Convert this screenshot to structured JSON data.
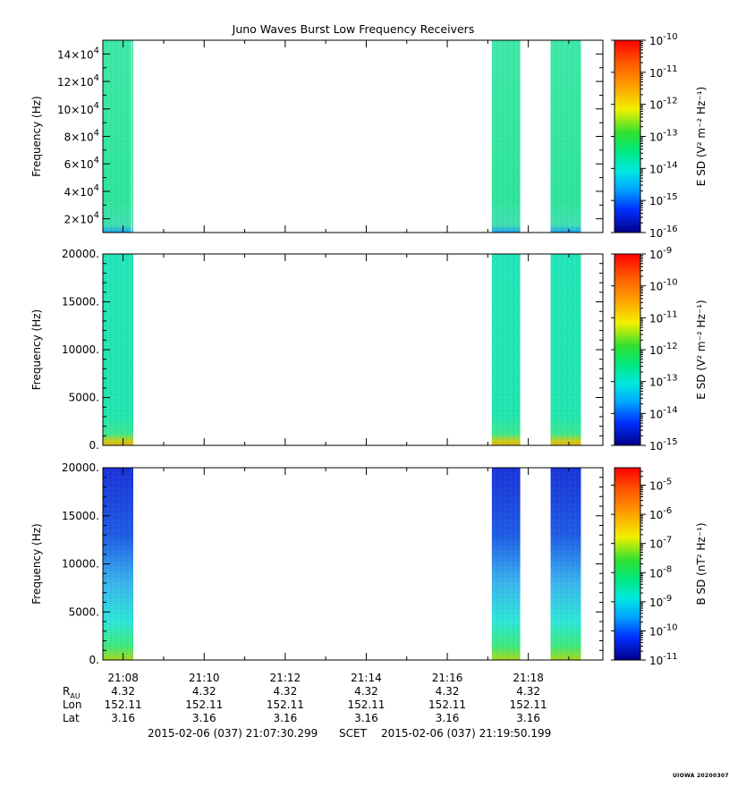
{
  "chart_data": {
    "type": "heatmap",
    "title": "Juno Waves Burst Low Frequency Receivers",
    "time_ticks": [
      "21:08",
      "21:10",
      "21:12",
      "21:14",
      "21:16",
      "21:18"
    ],
    "time_range": {
      "start_min": 7.5,
      "end_min": 19.84
    },
    "data_intervals_min": [
      [
        7.5,
        8.25
      ],
      [
        17.1,
        17.8
      ],
      [
        18.55,
        19.3
      ]
    ],
    "panels": [
      {
        "ylabel": "Frequency (Hz)",
        "ylim": [
          10000,
          150000
        ],
        "yticks": [
          {
            "value": 20000,
            "mant": "2×10",
            "exp": "4"
          },
          {
            "value": 40000,
            "mant": "4×10",
            "exp": "4"
          },
          {
            "value": 60000,
            "mant": "6×10",
            "exp": "4"
          },
          {
            "value": 80000,
            "mant": "8×10",
            "exp": "4"
          },
          {
            "value": 100000,
            "mant": "10×10",
            "exp": "4"
          },
          {
            "value": 120000,
            "mant": "12×10",
            "exp": "4"
          },
          {
            "value": 140000,
            "mant": "14×10",
            "exp": "4"
          }
        ],
        "colorbar_label": "E SD (V² m⁻² Hz⁻¹)",
        "colorbar_exponents": [
          "-10",
          "-11",
          "-12",
          "-13",
          "-14",
          "-15",
          "-16"
        ],
        "colorbar_log_range": [
          -16,
          -10
        ]
      },
      {
        "ylabel": "Frequency (Hz)",
        "ylim": [
          0,
          20000
        ],
        "yticks": [
          {
            "value": 0,
            "label": "0."
          },
          {
            "value": 5000,
            "label": "5000."
          },
          {
            "value": 10000,
            "label": "10000."
          },
          {
            "value": 15000,
            "label": "15000."
          },
          {
            "value": 20000,
            "label": "20000."
          }
        ],
        "colorbar_label": "E SD (V² m⁻² Hz⁻¹)",
        "colorbar_exponents": [
          "-9",
          "-10",
          "-11",
          "-12",
          "-13",
          "-14",
          "-15"
        ],
        "colorbar_log_range": [
          -15,
          -9
        ]
      },
      {
        "ylabel": "Frequency (Hz)",
        "ylim": [
          0,
          20000
        ],
        "yticks": [
          {
            "value": 0,
            "label": "0."
          },
          {
            "value": 5000,
            "label": "5000."
          },
          {
            "value": 10000,
            "label": "10000."
          },
          {
            "value": 15000,
            "label": "15000."
          },
          {
            "value": 20000,
            "label": "20000."
          }
        ],
        "colorbar_label": "B SD (nT² Hz⁻¹)",
        "colorbar_exponents": [
          "-5",
          "-6",
          "-7",
          "-8",
          "-9",
          "-10",
          "-11"
        ],
        "colorbar_log_range": [
          -11,
          -4.4
        ]
      }
    ],
    "ephemeris": {
      "rows": [
        {
          "label": "R",
          "sub": "AU",
          "values": [
            "4.32",
            "4.32",
            "4.32",
            "4.32",
            "4.32",
            "4.32"
          ]
        },
        {
          "label": "Lon",
          "sub": "",
          "values": [
            "152.11",
            "152.11",
            "152.11",
            "152.11",
            "152.11",
            "152.11"
          ]
        },
        {
          "label": "Lat",
          "sub": "",
          "values": [
            "3.16",
            "3.16",
            "3.16",
            "3.16",
            "3.16",
            "3.16"
          ]
        }
      ]
    }
  },
  "footer": {
    "start": "2015-02-06 (037) 21:07:30.299",
    "frame": "SCET",
    "end": "2015-02-06 (037) 21:19:50.199"
  },
  "credit": "UIOWA 20200307"
}
